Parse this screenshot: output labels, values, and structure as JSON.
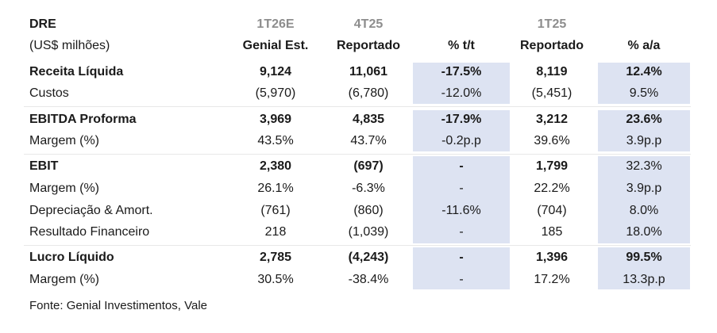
{
  "title": "DRE",
  "units": "(US$ milhões)",
  "colors": {
    "highlight": "#dde3f2",
    "header_gray": "#8d8d8d"
  },
  "header": {
    "period_1": "1T26E",
    "period_2": "4T25",
    "period_3": "1T25",
    "col_1": "Genial Est.",
    "col_2": "Reportado",
    "col_3": "% t/t",
    "col_4": "Reportado",
    "col_5": "% a/a"
  },
  "rows": [
    {
      "label": "Receita Líquida",
      "est": "9,124",
      "rep": "11,061",
      "qoq": "-17.5%",
      "prev": "8,119",
      "yoy": "12.4%"
    },
    {
      "label": "Custos",
      "est": "(5,970)",
      "rep": "(6,780)",
      "qoq": "-12.0%",
      "prev": "(5,451)",
      "yoy": "9.5%"
    },
    {
      "label": "EBITDA Proforma",
      "est": "3,969",
      "rep": "4,835",
      "qoq": "-17.9%",
      "prev": "3,212",
      "yoy": "23.6%"
    },
    {
      "label": "Margem (%)",
      "est": "43.5%",
      "rep": "43.7%",
      "qoq": "-0.2p.p",
      "prev": "39.6%",
      "yoy": "3.9p.p"
    },
    {
      "label": "EBIT",
      "est": "2,380",
      "rep": "(697)",
      "qoq": "-",
      "prev": "1,799",
      "yoy": "32.3%"
    },
    {
      "label": "Margem (%)",
      "est": "26.1%",
      "rep": "-6.3%",
      "qoq": "-",
      "prev": "22.2%",
      "yoy": "3.9p.p"
    },
    {
      "label": "Depreciação & Amort.",
      "est": "(761)",
      "rep": "(860)",
      "qoq": "-11.6%",
      "prev": "(704)",
      "yoy": "8.0%"
    },
    {
      "label": "Resultado Financeiro",
      "est": "218",
      "rep": "(1,039)",
      "qoq": "-",
      "prev": "185",
      "yoy": "18.0%"
    },
    {
      "label": "Lucro Líquido",
      "est": "2,785",
      "rep": "(4,243)",
      "qoq": "-",
      "prev": "1,396",
      "yoy": "99.5%"
    },
    {
      "label": "Margem (%)",
      "est": "30.5%",
      "rep": "-38.4%",
      "qoq": "-",
      "prev": "17.2%",
      "yoy": "13.3p.p"
    }
  ],
  "source": "Fonte: Genial Investimentos, Vale"
}
